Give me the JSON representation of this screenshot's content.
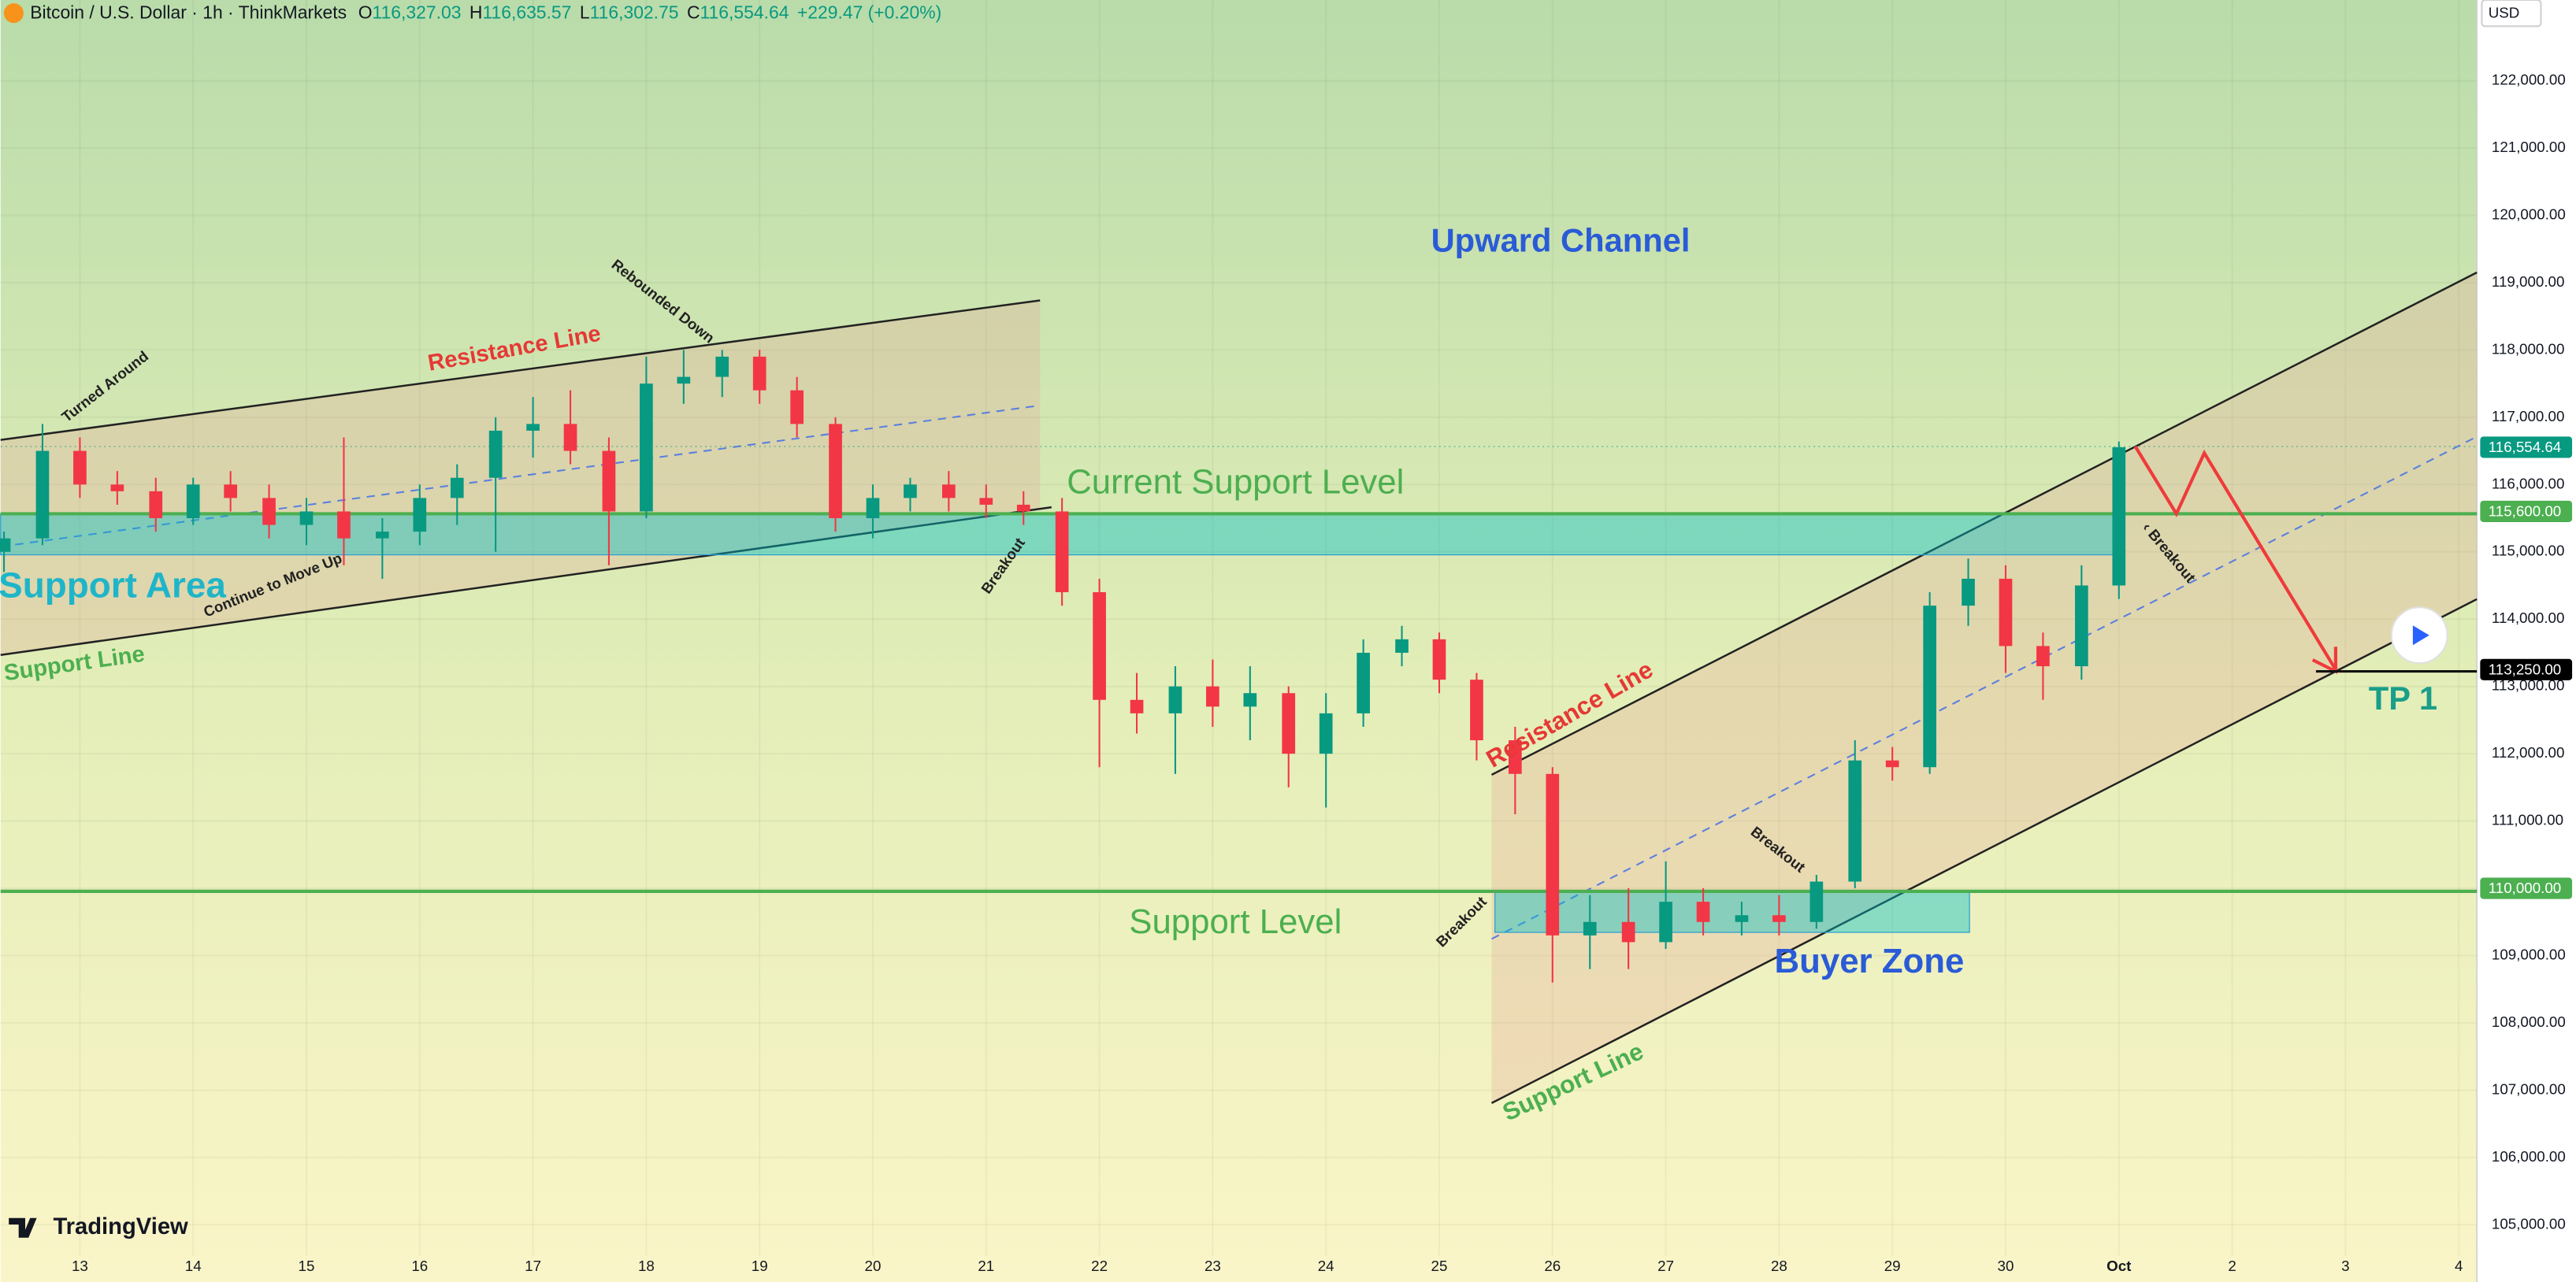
{
  "chart_data": {
    "type": "candlestick",
    "header": {
      "symbol": "Bitcoin / U.S. Dollar · 1h · ThinkMarkets",
      "o_label": "O",
      "o": "116,327.03",
      "h_label": "H",
      "h": "116,635.57",
      "l_label": "L",
      "l": "116,302.75",
      "c_label": "C",
      "c": "116,554.64",
      "change": "+229.47 (+0.20%)"
    },
    "currency": "USD",
    "brand": "TradingView",
    "x": [
      -0.67,
      -0.33,
      0,
      0.33,
      0.67,
      1,
      1.33,
      1.67,
      2,
      2.33,
      2.67,
      3,
      3.33,
      3.67,
      4,
      4.33,
      4.67,
      5,
      5.33,
      5.67,
      6,
      6.33,
      6.67,
      7,
      7.33,
      7.67,
      8,
      8.33,
      8.67,
      9,
      9.33,
      9.67,
      10,
      10.33,
      10.67,
      11,
      11.33,
      11.67,
      12,
      12.33,
      12.67,
      13,
      13.33,
      13.67,
      14,
      14.33,
      14.67,
      15,
      15.33,
      15.67,
      16,
      16.33,
      16.67,
      17,
      17.33,
      17.67,
      18
    ],
    "open": [
      115000,
      115200,
      116500,
      116000,
      115900,
      115500,
      116000,
      115800,
      115400,
      115600,
      115200,
      115300,
      115800,
      116100,
      116800,
      116900,
      116500,
      115600,
      117500,
      117600,
      117900,
      117400,
      116900,
      115500,
      115800,
      116000,
      115800,
      115700,
      115600,
      114400,
      112800,
      112600,
      113000,
      112700,
      112900,
      112000,
      112600,
      113500,
      113700,
      113100,
      112200,
      111700,
      109300,
      109500,
      109200,
      109800,
      109500,
      109600,
      109500,
      110100,
      111900,
      111800,
      114200,
      114600,
      113600,
      113300,
      114500
    ],
    "high": [
      115300,
      116900,
      116700,
      116200,
      116100,
      116100,
      116200,
      116000,
      115800,
      116700,
      115500,
      116000,
      116300,
      117000,
      117300,
      117400,
      116700,
      117900,
      118000,
      118000,
      118000,
      117600,
      117000,
      116000,
      116100,
      116200,
      116000,
      115900,
      115800,
      114600,
      113200,
      113300,
      113400,
      113300,
      113000,
      112900,
      113700,
      113900,
      113800,
      113200,
      112400,
      111800,
      109900,
      110000,
      110400,
      110000,
      109800,
      109900,
      110200,
      112200,
      112100,
      114400,
      114900,
      114800,
      113800,
      114800,
      116640
    ],
    "low": [
      114700,
      115100,
      115800,
      115700,
      115300,
      115400,
      115600,
      115200,
      115100,
      114800,
      114600,
      115100,
      115400,
      115000,
      116400,
      116300,
      114800,
      115500,
      117200,
      117300,
      117200,
      116700,
      115300,
      115200,
      115600,
      115600,
      115500,
      115400,
      114200,
      111800,
      112300,
      111700,
      112400,
      112200,
      111500,
      111200,
      112400,
      113300,
      112900,
      111900,
      111100,
      108600,
      108800,
      108800,
      109100,
      109300,
      109300,
      109300,
      109400,
      110000,
      111600,
      111700,
      113900,
      113200,
      112800,
      113100,
      114300
    ],
    "close": [
      115200,
      116500,
      116000,
      115900,
      115500,
      116000,
      115800,
      115400,
      115600,
      115200,
      115300,
      115800,
      116100,
      116800,
      116900,
      116500,
      115600,
      117500,
      117600,
      117900,
      117400,
      116900,
      115500,
      115800,
      116000,
      115800,
      115700,
      115600,
      114400,
      112800,
      112600,
      113000,
      112700,
      112900,
      112000,
      112600,
      113500,
      113700,
      113100,
      112200,
      111700,
      109300,
      109500,
      109200,
      109800,
      109500,
      109600,
      109500,
      110100,
      111900,
      111800,
      114200,
      114600,
      113600,
      113300,
      114500,
      116554.64
    ],
    "up_color": "#089981",
    "down_color": "#f23645",
    "xlim": [
      -0.7,
      21.16
    ],
    "xticks": [
      {
        "value": 0,
        "label": "13"
      },
      {
        "value": 1,
        "label": "14"
      },
      {
        "value": 2,
        "label": "15"
      },
      {
        "value": 3,
        "label": "16"
      },
      {
        "value": 4,
        "label": "17"
      },
      {
        "value": 5,
        "label": "18"
      },
      {
        "value": 6,
        "label": "19"
      },
      {
        "value": 7,
        "label": "20"
      },
      {
        "value": 8,
        "label": "21"
      },
      {
        "value": 9,
        "label": "22"
      },
      {
        "value": 10,
        "label": "23"
      },
      {
        "value": 11,
        "label": "24"
      },
      {
        "value": 12,
        "label": "25"
      },
      {
        "value": 13,
        "label": "26"
      },
      {
        "value": 14,
        "label": "27"
      },
      {
        "value": 15,
        "label": "28"
      },
      {
        "value": 16,
        "label": "29"
      },
      {
        "value": 17,
        "label": "30"
      },
      {
        "value": 18,
        "label": "Oct"
      },
      {
        "value": 19,
        "label": "2"
      },
      {
        "value": 20,
        "label": "3"
      },
      {
        "value": 21,
        "label": "4"
      }
    ],
    "ylim": [
      104540,
      123200
    ],
    "yticks": [
      {
        "value": 105000,
        "label": "105,000.00"
      },
      {
        "value": 106000,
        "label": "106,000.00"
      },
      {
        "value": 107000,
        "label": "107,000.00"
      },
      {
        "value": 108000,
        "label": "108,000.00"
      },
      {
        "value": 109000,
        "label": "109,000.00"
      },
      {
        "value": 110000,
        "label": "110,000.00"
      },
      {
        "value": 111000,
        "label": "111,000.00"
      },
      {
        "value": 112000,
        "label": "112,000.00"
      },
      {
        "value": 113000,
        "label": "113,000.00"
      },
      {
        "value": 114000,
        "label": "114,000.00"
      },
      {
        "value": 115000,
        "label": "115,000.00"
      },
      {
        "value": 116000,
        "label": "116,000.00"
      },
      {
        "value": 117000,
        "label": "117,000.00"
      },
      {
        "value": 118000,
        "label": "118,000.00"
      },
      {
        "value": 119000,
        "label": "119,000.00"
      },
      {
        "value": 120000,
        "label": "120,000.00"
      },
      {
        "value": 121000,
        "label": "121,000.00"
      },
      {
        "value": 122000,
        "label": "122,000.00"
      }
    ],
    "price_labels": [
      {
        "value": 116554.64,
        "label": "116,554.64",
        "color": "#089981"
      },
      {
        "value": 115600,
        "label": "115,600.00",
        "color": "#4caf50"
      },
      {
        "value": 110000,
        "label": "110,000.00",
        "color": "#4caf50"
      },
      {
        "value": 113250,
        "label": "113,250.00",
        "color": "#000000"
      }
    ],
    "annotations": [
      "Upward Channel",
      "Resistance Line",
      "Turned Around",
      "Rebounded Down",
      "Current Support Level",
      "Support Area",
      "Continue to Move Up",
      "Support Line",
      "Breakout",
      "Resistance Line",
      "Breakout",
      "‹ Breakout",
      "Support Level",
      "Breakout",
      "Buyer Zone",
      "Support Line",
      "TP 1"
    ]
  }
}
